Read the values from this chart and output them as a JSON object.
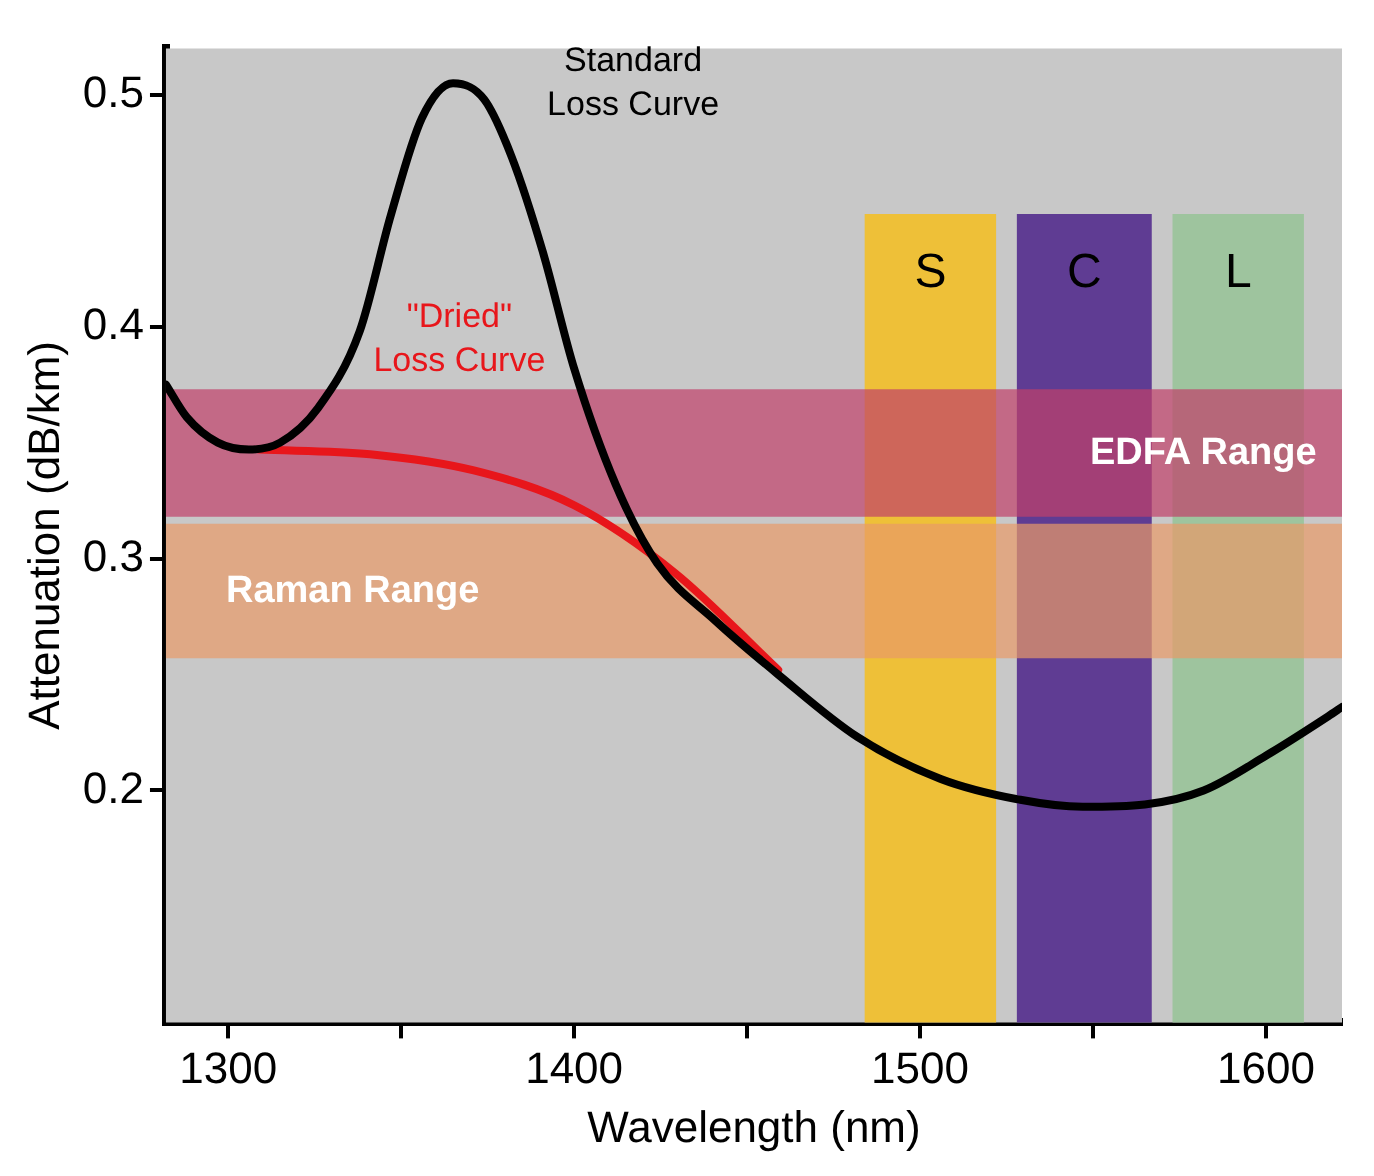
{
  "chart_data": {
    "type": "line",
    "xlabel": "Wavelength (nm)",
    "ylabel": "Attenuation (dB/km)",
    "xlim": [
      1282,
      1622
    ],
    "xticks": [
      1300,
      {
        "value": 1350,
        "label": null
      },
      1400,
      {
        "value": 1450,
        "label": null
      },
      1500,
      {
        "value": 1550,
        "label": null
      },
      1600
    ],
    "ylim": [
      0.1,
      0.52
    ],
    "yticks": [
      0.2,
      0.3,
      0.4,
      0.5
    ],
    "grid": false,
    "legend": false,
    "marker": "none",
    "line_style": "solid",
    "series": [
      {
        "color": "#000000",
        "x": [
          1282,
          1288,
          1297,
          1306,
          1315,
          1326,
          1338,
          1347,
          1356,
          1365,
          1374,
          1382,
          1391,
          1400,
          1412,
          1424,
          1441,
          1459,
          1482,
          1506,
          1529,
          1547,
          1565,
          1582,
          1600,
          1618,
          1622
        ],
        "values": [
          0.375,
          0.361,
          0.35,
          0.347,
          0.35,
          0.365,
          0.398,
          0.448,
          0.49,
          0.505,
          0.498,
          0.473,
          0.432,
          0.382,
          0.332,
          0.298,
          0.273,
          0.25,
          0.223,
          0.205,
          0.196,
          0.193,
          0.194,
          0.2,
          0.215,
          0.232,
          0.236
        ]
      },
      {
        "color": "#e8161b",
        "x": [
          1309,
          1341,
          1371,
          1400,
          1429,
          1459
        ],
        "values": [
          0.347,
          0.345,
          0.338,
          0.323,
          0.294,
          0.252
        ]
      }
    ],
    "bands": [
      {
        "axis": "x",
        "from": 1484,
        "to": 1522,
        "label": "S",
        "color": "#f0c030"
      },
      {
        "axis": "x",
        "from": 1528,
        "to": 1567,
        "label": "C",
        "color": "#5a3590"
      },
      {
        "axis": "x",
        "from": 1573,
        "to": 1611,
        "label": "L",
        "color": "#9cc49c"
      },
      {
        "axis": "y",
        "from": 0.257,
        "to": 0.315,
        "label": "Raman Range",
        "color": "#e89a68"
      },
      {
        "axis": "y",
        "from": 0.318,
        "to": 0.373,
        "label": "EDFA Range",
        "color": "#c0406a"
      }
    ],
    "annotations": [
      "Standard Loss Curve",
      "\"Dried\" Loss Curve"
    ]
  }
}
